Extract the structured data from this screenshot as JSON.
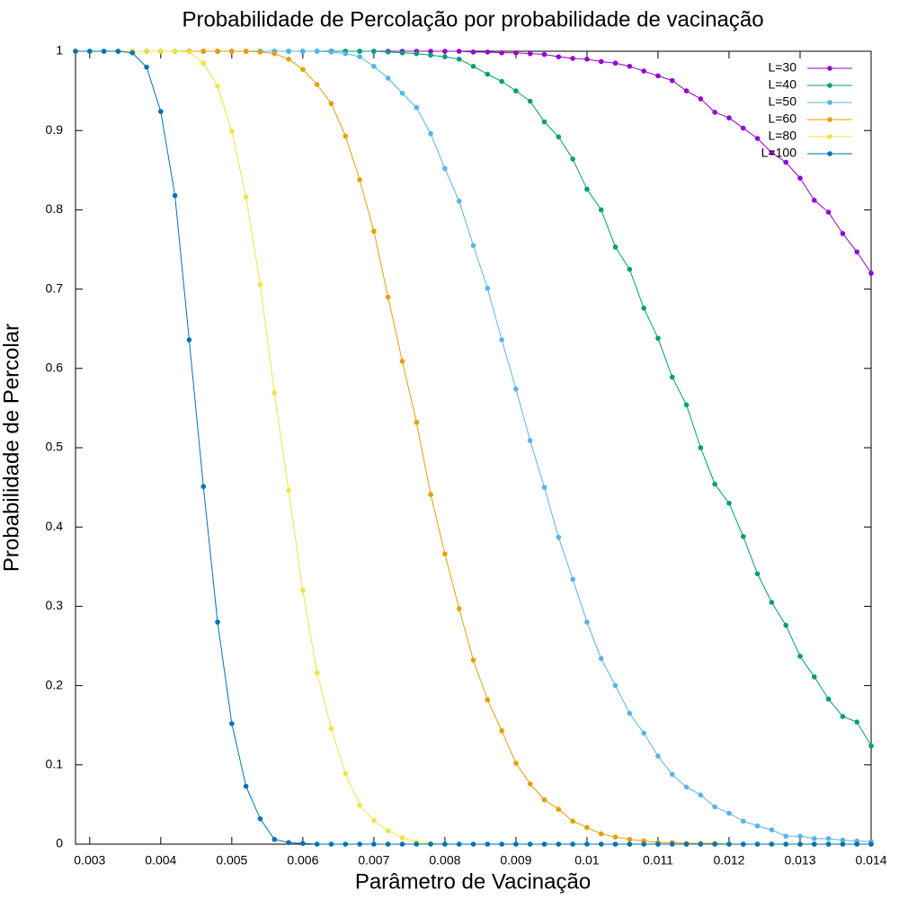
{
  "chart_data": {
    "type": "line",
    "title": "Probabilidade de Percolação por probabilidade de vacinação",
    "x_label": "Parâmetro de Vacinação",
    "y_label": "Probabilidade de Percolar",
    "x": [
      0.0028,
      0.003,
      0.0032,
      0.0034,
      0.0036,
      0.0038,
      0.004,
      0.0042,
      0.0044,
      0.0046,
      0.0048,
      0.005,
      0.0052,
      0.0054,
      0.0056,
      0.0058,
      0.006,
      0.0062,
      0.0064,
      0.0066,
      0.0068,
      0.007,
      0.0072,
      0.0074,
      0.0076,
      0.0078,
      0.008,
      0.0082,
      0.0084,
      0.0086,
      0.0088,
      0.009,
      0.0092,
      0.0094,
      0.0096,
      0.0098,
      0.01,
      0.0102,
      0.0104,
      0.0106,
      0.0108,
      0.011,
      0.0112,
      0.0114,
      0.0116,
      0.0118,
      0.012,
      0.0122,
      0.0124,
      0.0126,
      0.0128,
      0.013,
      0.0132,
      0.0134,
      0.0136,
      0.0138,
      0.014
    ],
    "series": [
      {
        "name": "L=30",
        "color": "#9400d3",
        "values": [
          1,
          1,
          1,
          1,
          1,
          1,
          1,
          1,
          1,
          1,
          1,
          1,
          1,
          1,
          1,
          1,
          1,
          1,
          1,
          1,
          1,
          1,
          1,
          1,
          1,
          1,
          1,
          1,
          0.999,
          0.999,
          0.998,
          0.998,
          0.997,
          0.996,
          0.993,
          0.991,
          0.99,
          0.987,
          0.985,
          0.981,
          0.975,
          0.969,
          0.963,
          0.95,
          0.94,
          0.923,
          0.916,
          0.903,
          0.89,
          0.872,
          0.86,
          0.84,
          0.812,
          0.797,
          0.77,
          0.747,
          0.72
        ]
      },
      {
        "name": "L=40",
        "color": "#009e73",
        "values": [
          1,
          1,
          1,
          1,
          1,
          1,
          1,
          1,
          1,
          1,
          1,
          1,
          1,
          1,
          1,
          1,
          1,
          1,
          1,
          1,
          1,
          1,
          0.999,
          0.998,
          0.997,
          0.995,
          0.993,
          0.99,
          0.981,
          0.971,
          0.962,
          0.95,
          0.937,
          0.911,
          0.892,
          0.864,
          0.826,
          0.8,
          0.753,
          0.725,
          0.676,
          0.638,
          0.589,
          0.554,
          0.5,
          0.454,
          0.43,
          0.388,
          0.341,
          0.305,
          0.276,
          0.237,
          0.211,
          0.183,
          0.161,
          0.154,
          0.124
        ]
      },
      {
        "name": "L=50",
        "color": "#56b4e9",
        "values": [
          1,
          1,
          1,
          1,
          1,
          1,
          1,
          1,
          1,
          1,
          1,
          1,
          1,
          1,
          1,
          1,
          1,
          1,
          0.999,
          0.997,
          0.993,
          0.981,
          0.966,
          0.947,
          0.929,
          0.896,
          0.852,
          0.811,
          0.755,
          0.701,
          0.636,
          0.574,
          0.509,
          0.45,
          0.387,
          0.334,
          0.28,
          0.234,
          0.2,
          0.165,
          0.14,
          0.111,
          0.088,
          0.072,
          0.062,
          0.047,
          0.039,
          0.029,
          0.023,
          0.018,
          0.01,
          0.01,
          0.007,
          0.007,
          0.005,
          0.004,
          0.003
        ]
      },
      {
        "name": "L=60",
        "color": "#e69f00",
        "values": [
          1,
          1,
          1,
          1,
          1,
          1,
          1,
          1,
          1,
          1,
          1,
          1,
          1,
          0.999,
          0.997,
          0.99,
          0.977,
          0.958,
          0.934,
          0.893,
          0.838,
          0.773,
          0.69,
          0.609,
          0.532,
          0.441,
          0.366,
          0.297,
          0.232,
          0.182,
          0.143,
          0.102,
          0.076,
          0.056,
          0.044,
          0.029,
          0.021,
          0.013,
          0.009,
          0.006,
          0.004,
          0.002,
          0.002,
          0.001,
          0.001,
          0.001,
          0,
          0,
          0,
          0,
          0,
          0,
          0,
          0,
          0,
          0,
          0
        ]
      },
      {
        "name": "L=80",
        "color": "#f0e442",
        "values": [
          1,
          1,
          1,
          1,
          1,
          1,
          1,
          1,
          0.999,
          0.985,
          0.956,
          0.899,
          0.816,
          0.706,
          0.569,
          0.446,
          0.32,
          0.216,
          0.146,
          0.089,
          0.049,
          0.03,
          0.017,
          0.008,
          0.003,
          0.001,
          0,
          0,
          0,
          0,
          0,
          0,
          0,
          0,
          0,
          0,
          0,
          0,
          0,
          0,
          0,
          0,
          0,
          0,
          0,
          0,
          0,
          0,
          0,
          0,
          0,
          0,
          0,
          0,
          0,
          0,
          0
        ]
      },
      {
        "name": "L=100",
        "color": "#0072b2",
        "values": [
          1,
          1,
          1,
          1,
          0.998,
          0.98,
          0.924,
          0.818,
          0.636,
          0.451,
          0.28,
          0.152,
          0.073,
          0.032,
          0.006,
          0.002,
          0.001,
          0,
          0,
          0,
          0,
          0,
          0,
          0,
          0,
          0,
          0,
          0,
          0,
          0,
          0,
          0,
          0,
          0,
          0,
          0,
          0,
          0,
          0,
          0,
          0,
          0,
          0,
          0,
          0,
          0,
          0,
          0,
          0,
          0,
          0,
          0,
          0,
          0,
          0,
          0,
          0
        ]
      }
    ],
    "xlim": [
      0.0028,
      0.014
    ],
    "ylim": [
      0,
      1
    ],
    "xticks": [
      0.003,
      0.004,
      0.005,
      0.006,
      0.007,
      0.008,
      0.009,
      0.01,
      0.011,
      0.012,
      0.013,
      0.014
    ],
    "yticks": [
      0,
      0.1,
      0.2,
      0.3,
      0.4,
      0.5,
      0.6,
      0.7,
      0.8,
      0.9,
      1
    ],
    "legend": "top-right"
  }
}
